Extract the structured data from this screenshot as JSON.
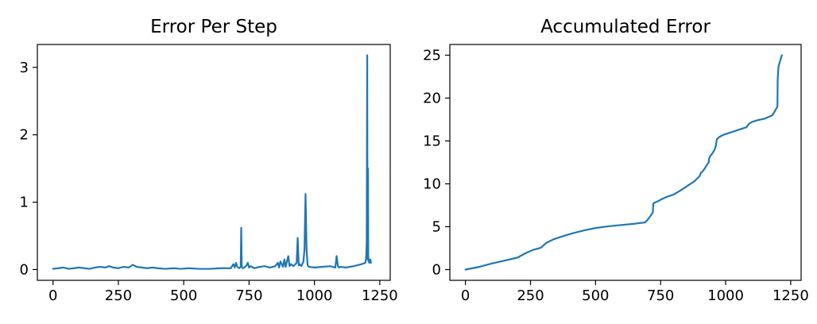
{
  "colors": {
    "series": "#1f77b4"
  },
  "chart_data": [
    {
      "type": "line",
      "title": "Error Per Step",
      "xlabel": "",
      "ylabel": "",
      "xlim": [
        -60,
        1290
      ],
      "ylim": [
        -0.16,
        3.34
      ],
      "xticks": [
        0,
        250,
        500,
        750,
        1000,
        1250
      ],
      "yticks": [
        0,
        1,
        2,
        3
      ],
      "grid": false,
      "legend": "none",
      "series": [
        {
          "x": [
            0,
            20,
            40,
            60,
            80,
            100,
            120,
            140,
            160,
            180,
            200,
            215,
            230,
            250,
            270,
            290,
            305,
            320,
            340,
            360,
            380,
            400,
            430,
            460,
            490,
            520,
            560,
            600,
            640,
            680,
            690,
            695,
            700,
            705,
            712,
            718,
            720,
            722,
            726,
            732,
            740,
            745,
            750,
            756,
            770,
            790,
            810,
            830,
            850,
            860,
            865,
            870,
            880,
            885,
            890,
            900,
            905,
            910,
            920,
            932,
            936,
            940,
            944,
            950,
            958,
            962,
            966,
            970,
            974,
            980,
            1000,
            1030,
            1060,
            1080,
            1085,
            1090,
            1095,
            1100,
            1120,
            1150,
            1180,
            1195,
            1198,
            1200,
            1202,
            1203,
            1204,
            1205,
            1206,
            1207,
            1208,
            1210,
            1212,
            1214,
            1216
          ],
          "y": [
            0.01,
            0.02,
            0.03,
            0.01,
            0.02,
            0.03,
            0.02,
            0.01,
            0.03,
            0.04,
            0.03,
            0.05,
            0.03,
            0.02,
            0.04,
            0.03,
            0.07,
            0.04,
            0.03,
            0.02,
            0.03,
            0.02,
            0.01,
            0.02,
            0.01,
            0.02,
            0.01,
            0.01,
            0.02,
            0.02,
            0.08,
            0.03,
            0.1,
            0.04,
            0.02,
            0.04,
            0.62,
            0.04,
            0.02,
            0.03,
            0.06,
            0.1,
            0.03,
            0.05,
            0.02,
            0.04,
            0.05,
            0.03,
            0.05,
            0.1,
            0.03,
            0.12,
            0.04,
            0.15,
            0.04,
            0.2,
            0.05,
            0.08,
            0.05,
            0.1,
            0.47,
            0.06,
            0.08,
            0.05,
            0.12,
            0.3,
            1.12,
            0.3,
            0.06,
            0.04,
            0.03,
            0.04,
            0.05,
            0.03,
            0.2,
            0.05,
            0.03,
            0.04,
            0.03,
            0.05,
            0.08,
            0.1,
            0.18,
            0.4,
            3.18,
            0.5,
            0.15,
            1.5,
            0.2,
            0.12,
            0.15,
            0.1,
            0.12,
            0.15,
            0.1
          ]
        }
      ]
    },
    {
      "type": "line",
      "title": "Accumulated Error",
      "xlabel": "",
      "ylabel": "",
      "xlim": [
        -60,
        1290
      ],
      "ylim": [
        -1.25,
        26.25
      ],
      "xticks": [
        0,
        250,
        500,
        750,
        1000,
        1250
      ],
      "yticks": [
        0,
        5,
        10,
        15,
        20,
        25
      ],
      "grid": false,
      "legend": "none",
      "series": [
        {
          "x": [
            0,
            50,
            100,
            150,
            200,
            230,
            260,
            290,
            310,
            340,
            380,
            420,
            460,
            500,
            550,
            600,
            650,
            690,
            700,
            712,
            720,
            722,
            726,
            735,
            760,
            780,
            800,
            820,
            840,
            860,
            880,
            900,
            905,
            910,
            920,
            930,
            935,
            936,
            940,
            950,
            958,
            962,
            966,
            970,
            975,
            990,
            1020,
            1050,
            1080,
            1090,
            1100,
            1120,
            1150,
            1180,
            1195,
            1199,
            1200,
            1203,
            1206,
            1210,
            1214,
            1216
          ],
          "y": [
            0.0,
            0.3,
            0.7,
            1.05,
            1.4,
            1.9,
            2.3,
            2.55,
            3.1,
            3.55,
            3.95,
            4.3,
            4.6,
            4.85,
            5.05,
            5.2,
            5.35,
            5.5,
            5.8,
            6.3,
            6.65,
            7.7,
            7.8,
            7.9,
            8.3,
            8.55,
            8.75,
            9.1,
            9.5,
            9.9,
            10.3,
            10.9,
            11.3,
            11.4,
            11.8,
            12.3,
            12.5,
            12.9,
            13.2,
            13.6,
            14.0,
            14.4,
            15.2,
            15.3,
            15.45,
            15.7,
            16.0,
            16.3,
            16.6,
            17.0,
            17.2,
            17.4,
            17.6,
            18.0,
            18.8,
            19.0,
            22.2,
            23.6,
            24.0,
            24.4,
            24.8,
            25.0
          ]
        }
      ]
    }
  ]
}
